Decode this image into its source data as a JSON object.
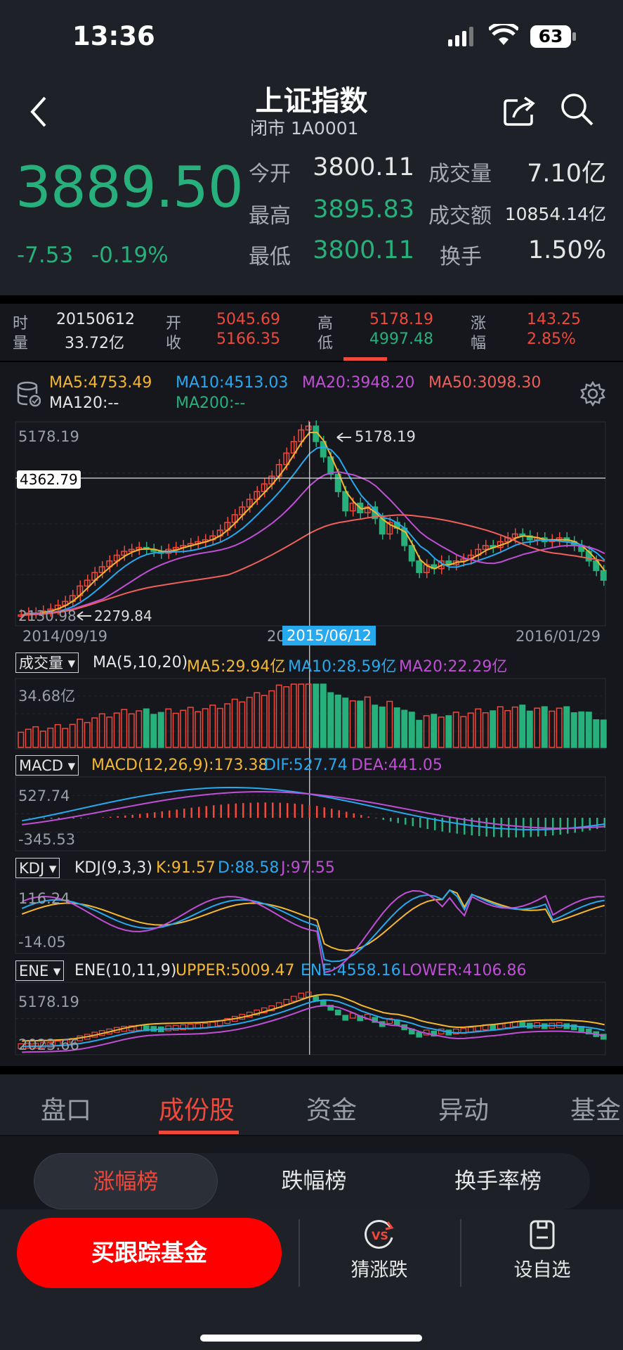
{
  "status_bar": {
    "time": "13:36",
    "battery": "63"
  },
  "header": {
    "title": "上证指数",
    "subtitle": "闭市 1A0001"
  },
  "quote": {
    "price": "3889.50",
    "change": "-7.53",
    "change_pct": "-0.19%",
    "open_label": "今开",
    "open": "3800.11",
    "high_label": "最高",
    "high": "3895.83",
    "low_label": "最低",
    "low": "3800.11",
    "volume_label": "成交量",
    "volume": "7.10亿",
    "amount_label": "成交额",
    "amount": "10854.14亿",
    "turnover_label": "换手",
    "turnover": "1.50%"
  },
  "crosshair": {
    "time_label": "时",
    "time": "20150612",
    "vol_label": "量",
    "vol": "33.72亿",
    "open_label": "开",
    "open": "5045.69",
    "close_label": "收",
    "close": "5166.35",
    "high_label": "高",
    "high": "5178.19",
    "low_label": "低",
    "low": "4997.48",
    "chg_label": "涨",
    "chg": "143.25",
    "pct_label": "幅",
    "pct": "2.85%"
  },
  "ma_legend": {
    "ma5": "MA5:4753.49",
    "ma10": "MA10:4513.03",
    "ma20": "MA20:3948.20",
    "ma50": "MA50:3098.30",
    "ma120": "MA120:--",
    "ma200": "MA200:--"
  },
  "main_chart": {
    "max_label": "5178.19",
    "min_label": "2130.98",
    "peak_label": "5178.19",
    "trough_label": "2279.84",
    "cross_value": "4362.79",
    "date_start": "2014/09/19",
    "date_mid_prefix": "20",
    "date_cross": "2015/06/12",
    "date_end": "2016/01/29"
  },
  "volume_panel": {
    "selector": "成交量",
    "params": "MA(5,10,20)",
    "ma5": "MA5:29.94亿",
    "ma10": "MA10:28.59亿",
    "ma20": "MA20:22.29亿",
    "max_label": "34.68亿"
  },
  "macd_panel": {
    "selector": "MACD",
    "params": "MACD(12,26,9):173.38",
    "dif": "DIF:527.74",
    "dea": "DEA:441.05",
    "max_label": "527.74",
    "min_label": "-345.53"
  },
  "kdj_panel": {
    "selector": "KDJ",
    "params": "KDJ(9,3,3)",
    "k": "K:91.57",
    "d": "D:88.58",
    "j": "J:97.55",
    "max_label": "116.24",
    "min_label": "-14.05"
  },
  "ene_panel": {
    "selector": "ENE",
    "params": "ENE(10,11,9)",
    "upper": "UPPER:5009.47",
    "ene": "ENE:4558.16",
    "lower": "LOWER:4106.86",
    "max_label": "5178.19",
    "min_label": "2023.66"
  },
  "tabs": [
    "盘口",
    "成份股",
    "资金",
    "异动",
    "基金"
  ],
  "segments": [
    "涨幅榜",
    "跌幅榜",
    "换手率榜"
  ],
  "footer": {
    "buy": "买跟踪基金",
    "guess": "猜涨跌",
    "add": "设自选"
  },
  "colors": {
    "up": "#f0483b",
    "down": "#27b07b",
    "ma5": "#f5b72d",
    "ma10": "#27a9f0",
    "ma20": "#c04fd6",
    "ma50": "#f0605a"
  }
}
